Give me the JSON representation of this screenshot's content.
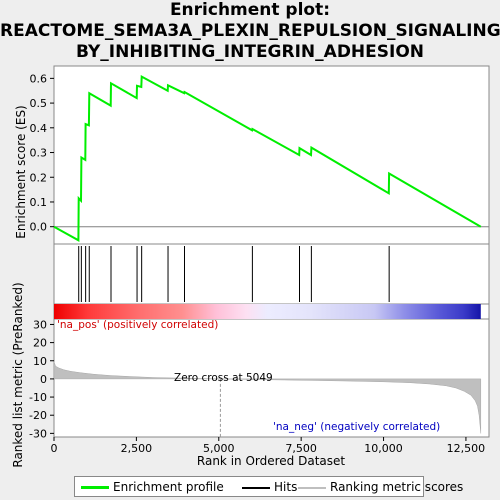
{
  "title": {
    "line1": "Enrichment plot:",
    "line2": "REACTOME_SEMA3A_PLEXIN_REPULSION_SIGNALING_",
    "line3": "BY_INHIBITING_INTEGRIN_ADHESION"
  },
  "legend": {
    "enrichment_profile": "Enrichment profile",
    "hits": "Hits",
    "ranking_metric_scores": "Ranking metric scores"
  },
  "colors": {
    "enrichment_line": "#00ee00",
    "hits": "#000000",
    "metric_fill": "#bfbfbf",
    "pos_label": "#d00000",
    "neg_label": "#0000c0"
  },
  "chart_data": [
    {
      "type": "line",
      "name": "enrichment_score",
      "ylabel": "Enrichment score (ES)",
      "ylim": [
        -0.07,
        0.65
      ],
      "xlim": [
        0,
        13200
      ],
      "yticks": [
        0.0,
        0.1,
        0.2,
        0.3,
        0.4,
        0.5,
        0.6
      ],
      "ytick_labels": [
        "0.0",
        "0.1",
        "0.2",
        "0.3",
        "0.4",
        "0.5",
        "0.6"
      ],
      "grid": false,
      "x": [
        0,
        740,
        750,
        820,
        830,
        950,
        960,
        1060,
        1070,
        1720,
        1730,
        2510,
        2520,
        2650,
        2660,
        3450,
        3460,
        3950,
        3960,
        6010,
        6020,
        7440,
        7450,
        7800,
        7810,
        10160,
        10170,
        12950
      ],
      "y": [
        0.0,
        -0.055,
        0.115,
        0.105,
        0.28,
        0.27,
        0.415,
        0.41,
        0.54,
        0.49,
        0.58,
        0.52,
        0.57,
        0.565,
        0.607,
        0.55,
        0.572,
        0.54,
        0.545,
        0.39,
        0.395,
        0.29,
        0.318,
        0.29,
        0.32,
        0.135,
        0.215,
        0.0
      ]
    },
    {
      "type": "hits",
      "name": "hits",
      "x": [
        750,
        830,
        960,
        1070,
        1730,
        2520,
        2660,
        3460,
        3960,
        6020,
        7450,
        7810,
        10170
      ]
    },
    {
      "type": "area",
      "name": "ranking_metric",
      "ylabel": "Ranked list metric (PreRanked)",
      "xlabel": "Rank in Ordered Dataset",
      "ylim": [
        -32,
        33
      ],
      "xlim": [
        0,
        13200
      ],
      "yticks": [
        -30,
        -20,
        -10,
        0,
        10,
        20,
        30
      ],
      "ytick_labels": [
        "-30",
        "-20",
        "-10",
        "0",
        "10",
        "20",
        "30"
      ],
      "xticks": [
        0,
        2500,
        5000,
        7500,
        10000,
        12500
      ],
      "xtick_labels": [
        "0",
        "2,500",
        "5,000",
        "7,500",
        "10,000",
        "12,500"
      ],
      "x": [
        0,
        50,
        150,
        300,
        500,
        800,
        1200,
        1700,
        2300,
        3000,
        3800,
        4500,
        5049,
        6000,
        7000,
        8000,
        9000,
        10000,
        10800,
        11400,
        11900,
        12200,
        12450,
        12650,
        12780,
        12850,
        12900,
        12950
      ],
      "y": [
        9.5,
        7.0,
        6.0,
        5.0,
        4.2,
        3.4,
        2.6,
        1.9,
        1.3,
        0.8,
        0.45,
        0.2,
        0.0,
        -0.3,
        -0.6,
        -0.9,
        -1.2,
        -1.6,
        -2.1,
        -2.8,
        -3.8,
        -5.0,
        -6.8,
        -9.0,
        -12.0,
        -15.0,
        -20.0,
        -30.0
      ],
      "annotations": {
        "pos": "'na_pos' (positively correlated)",
        "neg": "'na_neg' (negatively correlated)",
        "zero_cross": "Zero cross at 5049"
      },
      "zero_cross": 5049
    }
  ]
}
